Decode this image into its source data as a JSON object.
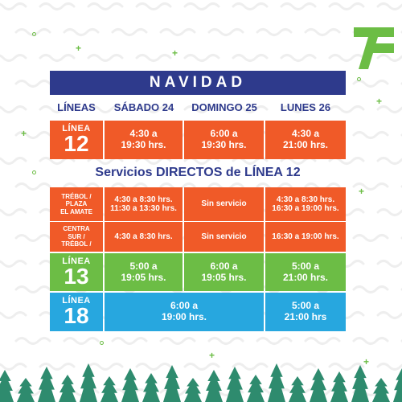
{
  "title": "NAVIDAD",
  "headers": {
    "lines": "LÍNEAS",
    "sat": "SÁBADO 24",
    "sun": "DOMINGO 25",
    "mon": "LUNES 26"
  },
  "line12": {
    "label": "LÍNEA",
    "number": "12",
    "sat": "4:30 a\n19:30 hrs.",
    "sun": "6:00 a\n19:30 hrs.",
    "mon": "4:30 a\n21:00 hrs."
  },
  "direct_title": "Servicios DIRECTOS de LÍNEA 12",
  "route1": {
    "label": "TRÉBOL /\nPLAZA\nEL AMATE",
    "sat": "4:30 a 8:30 hrs.\n11:30 a 13:30 hrs.",
    "sun": "Sin servicio",
    "mon": "4:30 a 8:30 hrs.\n16:30 a 19:00 hrs."
  },
  "route2": {
    "label": "CENTRA\nSUR /\nTRÉBOL /",
    "sat": "4:30 a 8:30 hrs.",
    "sun": "Sin servicio",
    "mon": "16:30 a 19:00 hrs."
  },
  "line13": {
    "label": "LÍNEA",
    "number": "13",
    "sat": "5:00 a\n19:05 hrs.",
    "sun": "6:00 a\n19:05 hrs.",
    "mon": "5:00 a\n21:00 hrs."
  },
  "line18": {
    "label": "LÍNEA",
    "number": "18",
    "sat_sun": "6:00 a\n19:00 hrs.",
    "mon": "5:00 a\n21:00 hrs"
  },
  "colors": {
    "navy": "#2e3a8c",
    "orange": "#f05a28",
    "green": "#6cbd45",
    "blue": "#27a7df"
  },
  "icons": [
    "wavy-line-pattern",
    "transmetro-logo",
    "pine-tree-row",
    "plus-sparkle",
    "circle-sparkle"
  ]
}
